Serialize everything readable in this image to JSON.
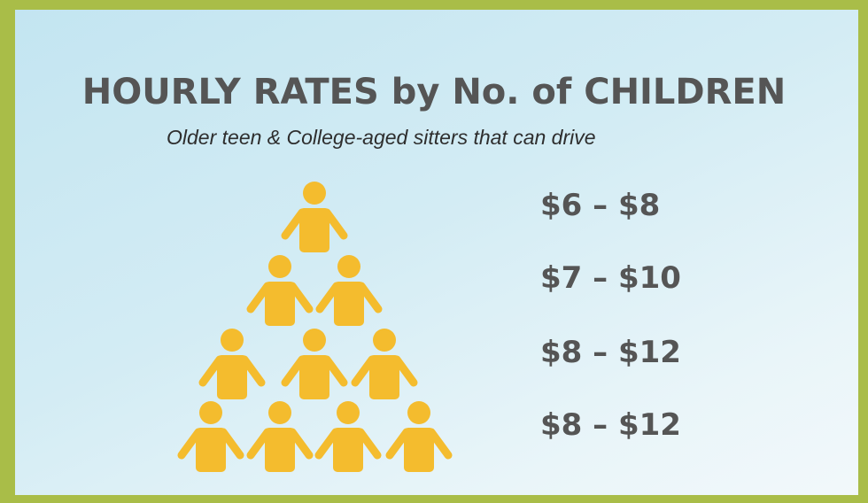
{
  "title": "HOURLY RATES by No. of CHILDREN",
  "subtitle": "Older teen & College-aged sitters that can drive",
  "person_color": "#f4bc2e",
  "tiers": [
    {
      "children": 1,
      "rate": "$6 – $8"
    },
    {
      "children": 2,
      "rate": "$7 – $10"
    },
    {
      "children": 3,
      "rate": "$8 – $12"
    },
    {
      "children": 4,
      "rate": "$8 – $12"
    }
  ],
  "icons": {
    "person": "person-icon"
  }
}
